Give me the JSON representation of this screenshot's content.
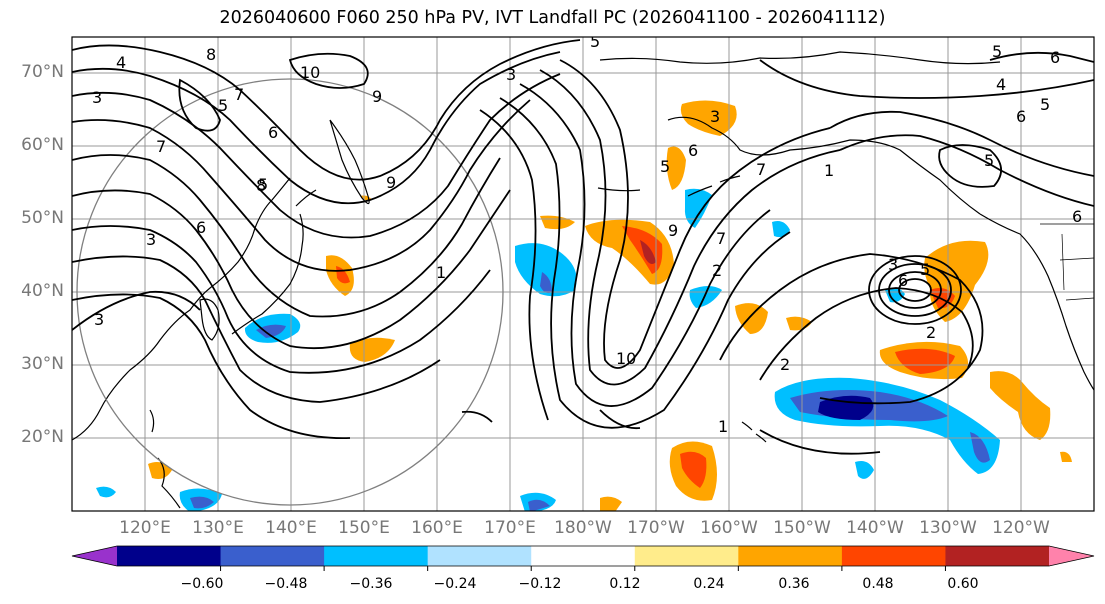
{
  "title": "2026040600 F060 250 hPa PV, IVT Landfall PC (2026041100 - 2026041112)",
  "map": {
    "lat_labels": [
      "70°N",
      "60°N",
      "50°N",
      "40°N",
      "30°N",
      "20°N"
    ],
    "lon_labels": [
      "120°E",
      "130°E",
      "140°E",
      "150°E",
      "160°E",
      "170°E",
      "180°W",
      "170°W",
      "160°W",
      "150°W",
      "140°W",
      "130°W",
      "120°W"
    ],
    "contour_labels": [
      "5",
      "6",
      "5",
      "4",
      "3",
      "8",
      "7",
      "5",
      "10",
      "9",
      "6",
      "7",
      "9",
      "8",
      "6",
      "3",
      "1",
      "3",
      "10",
      "9",
      "7",
      "2",
      "1",
      "3",
      "5",
      "6",
      "7",
      "3",
      "2",
      "2",
      "5",
      "6",
      "4",
      "5",
      "6",
      "5",
      "3",
      "1",
      "6",
      "5"
    ],
    "colors": {
      "land_outline": "#000000",
      "contour": "#000000",
      "grid": "#999999",
      "circle": "#808080"
    }
  },
  "colorbar": {
    "ticks": [
      "−0.60",
      "−0.48",
      "−0.36",
      "−0.24",
      "−0.12",
      "0.12",
      "0.24",
      "0.36",
      "0.48",
      "0.60"
    ],
    "colors": [
      "#9932cc",
      "#00008b",
      "#3a5fcd",
      "#00bfff",
      "#b0e2ff",
      "#ffffff",
      "#ffec8b",
      "#ffa500",
      "#ff4500",
      "#b22222",
      "#ff82ab"
    ]
  }
}
